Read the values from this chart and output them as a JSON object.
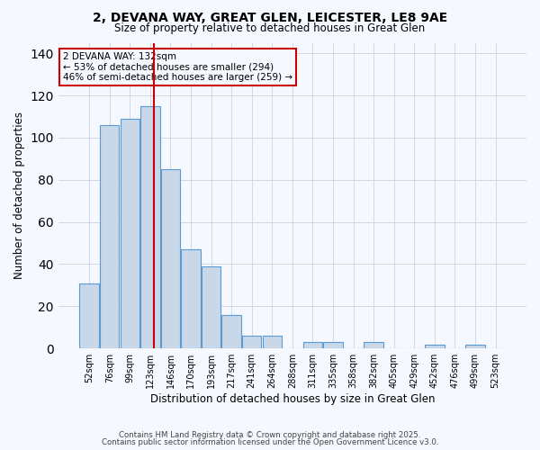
{
  "title": "2, DEVANA WAY, GREAT GLEN, LEICESTER, LE8 9AE",
  "subtitle": "Size of property relative to detached houses in Great Glen",
  "xlabel": "Distribution of detached houses by size in Great Glen",
  "ylabel": "Number of detached properties",
  "categories": [
    "52sqm",
    "76sqm",
    "99sqm",
    "123sqm",
    "146sqm",
    "170sqm",
    "193sqm",
    "217sqm",
    "241sqm",
    "264sqm",
    "288sqm",
    "311sqm",
    "335sqm",
    "358sqm",
    "382sqm",
    "405sqm",
    "429sqm",
    "452sqm",
    "476sqm",
    "499sqm",
    "523sqm"
  ],
  "values": [
    31,
    106,
    109,
    115,
    85,
    47,
    39,
    16,
    6,
    6,
    0,
    3,
    3,
    0,
    3,
    0,
    0,
    2,
    0,
    2,
    0
  ],
  "bar_color": "#c8d8e8",
  "bar_edge_color": "#5b9bd5",
  "vline_x": 3.18,
  "vline_color": "#cc0000",
  "ylim": [
    0,
    145
  ],
  "yticks": [
    0,
    20,
    40,
    60,
    80,
    100,
    120,
    140
  ],
  "annotation_title": "2 DEVANA WAY: 132sqm",
  "annotation_line1": "← 53% of detached houses are smaller (294)",
  "annotation_line2": "46% of semi-detached houses are larger (259) →",
  "footer_line1": "Contains HM Land Registry data © Crown copyright and database right 2025.",
  "footer_line2": "Contains public sector information licensed under the Open Government Licence v3.0.",
  "background_color": "#f5f8ff",
  "grid_color": "#c8d4e4"
}
